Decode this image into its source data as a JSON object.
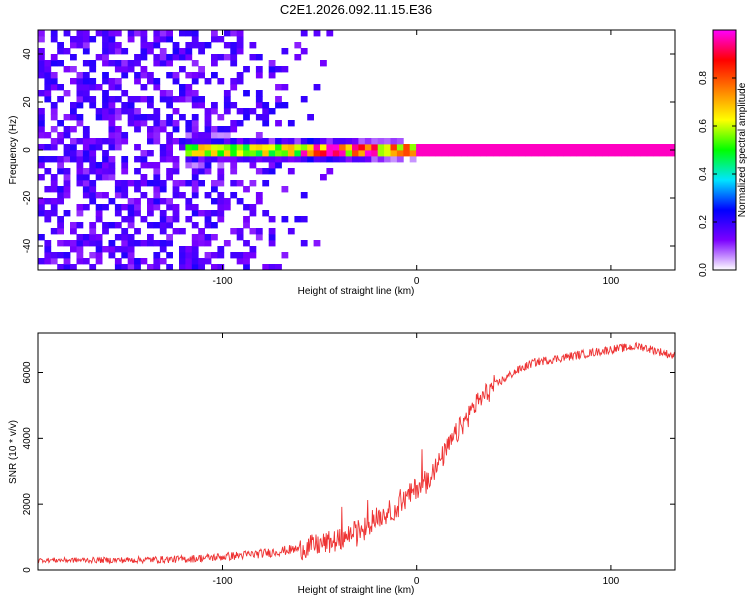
{
  "title": "C2E1.2026.092.11.15.E36",
  "chart_data": [
    {
      "type": "heatmap",
      "title": "C2E1.2026.092.11.15.E36",
      "xlabel": "Height of straight line (km)",
      "ylabel": "Frequency (Hz)",
      "xlim": [
        -195,
        133
      ],
      "ylim": [
        -50,
        50
      ],
      "xticks": [
        -100,
        0,
        100
      ],
      "xtick_labels": [
        "-100",
        "0",
        "100"
      ],
      "yticks": [
        -40,
        -20,
        0,
        20,
        40
      ],
      "ytick_labels": [
        "-40",
        "-20",
        "0",
        "20",
        "40"
      ],
      "colorbar": {
        "label": "Normalized spectral amplitude",
        "range": [
          0,
          1
        ],
        "ticks": [
          0.0,
          0.2,
          0.4,
          0.6,
          0.8
        ],
        "tick_labels": [
          "0.0",
          "0.2",
          "0.4",
          "0.6",
          "0.8"
        ],
        "colors": [
          "#ffffff",
          "#7b00ff",
          "#0000ff",
          "#00e5ff",
          "#00ff00",
          "#ffff00",
          "#ff8000",
          "#ff0000",
          "#ff00ff"
        ]
      },
      "noise_region_km": [
        -195,
        -40
      ],
      "signal_band_hz": [
        -4,
        4
      ],
      "signal_start_km": -120
    },
    {
      "type": "line",
      "xlabel": "Height of straight line (km)",
      "ylabel": "SNR (10 * v/v)",
      "xlim": [
        -195,
        133
      ],
      "ylim": [
        0,
        7200
      ],
      "xticks": [
        -100,
        0,
        100
      ],
      "xtick_labels": [
        "-100",
        "0",
        "100"
      ],
      "yticks": [
        0,
        2000,
        4000,
        6000
      ],
      "ytick_labels": [
        "0",
        "2000",
        "4000",
        "6000"
      ],
      "color": "#ee3333",
      "x": [
        -195,
        -150,
        -120,
        -100,
        -80,
        -60,
        -40,
        -30,
        -20,
        -10,
        0,
        10,
        20,
        30,
        40,
        50,
        60,
        80,
        100,
        115,
        133
      ],
      "y": [
        300,
        300,
        330,
        400,
        500,
        650,
        900,
        1200,
        1600,
        1900,
        2500,
        3100,
        4100,
        5000,
        5600,
        6000,
        6300,
        6500,
        6700,
        6800,
        6500
      ]
    }
  ]
}
